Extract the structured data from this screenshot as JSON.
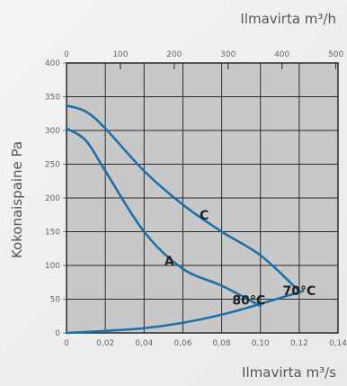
{
  "colors": {
    "plot_bg": "#c8c8c8",
    "grid": "#2a2a2a",
    "curve": "#1f6fa8",
    "text": "#555555"
  },
  "chart_data": {
    "type": "line",
    "xlabel_top": "Ilmavirta m³/h",
    "xlabel_bottom": "Ilmavirta m³/s",
    "ylabel": "Kokonaispaine Pa",
    "x_top_ticks": [
      "0",
      "100",
      "200",
      "300",
      "400",
      "500"
    ],
    "x_bottom_ticks": [
      "0",
      "0,02",
      "0,04",
      "0,06",
      "0,08",
      "0,10",
      "0,12",
      "0,14"
    ],
    "y_ticks": [
      "0",
      "50",
      "100",
      "150",
      "200",
      "250",
      "300",
      "350",
      "400"
    ],
    "xlim": [
      0,
      0.14
    ],
    "ylim": [
      0,
      400
    ],
    "grid": true,
    "series": [
      {
        "name": "C",
        "x": [
          0,
          0.01,
          0.02,
          0.04,
          0.06,
          0.08,
          0.1,
          0.12
        ],
        "values": [
          337,
          328,
          303,
          240,
          190,
          150,
          115,
          62
        ]
      },
      {
        "name": "A",
        "x": [
          0,
          0.01,
          0.02,
          0.04,
          0.06,
          0.08,
          0.1
        ],
        "values": [
          303,
          285,
          240,
          150,
          95,
          70,
          40
        ]
      },
      {
        "x": [
          0,
          0.02,
          0.04,
          0.06,
          0.08,
          0.1,
          0.122
        ],
        "values": [
          0,
          3,
          7,
          15,
          27,
          43,
          62
        ]
      }
    ],
    "annotations": [
      {
        "text": "C",
        "x": 0.071,
        "y": 168
      },
      {
        "text": "A",
        "x": 0.053,
        "y": 100
      },
      {
        "text": "80°C",
        "x": 0.094,
        "y": 42
      },
      {
        "text": "70°C",
        "x": 0.12,
        "y": 56
      }
    ]
  }
}
